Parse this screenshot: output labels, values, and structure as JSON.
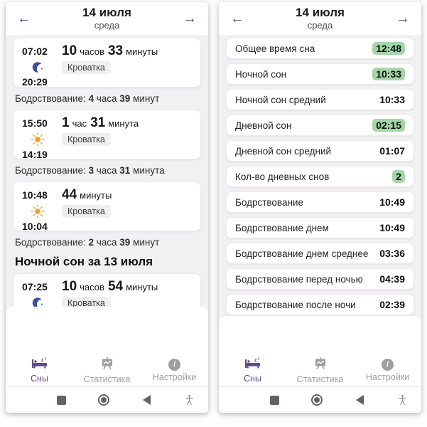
{
  "colors": {
    "accent_purple": "#5f4a8b",
    "night_blue": "#3a4fa0",
    "day_orange": "#f2a41f",
    "badge_green": "#a5d6a7"
  },
  "header": {
    "date": "14 июля",
    "weekday": "среда",
    "prev_glyph": "←",
    "next_glyph": "→"
  },
  "left_panel": {
    "entries": [
      {
        "kind": "sleep",
        "start": "07:02",
        "end": "20:29",
        "icon": "moon",
        "place": "Кроватка",
        "duration": [
          [
            "10",
            "часов"
          ],
          [
            "33",
            "минуты"
          ]
        ]
      },
      {
        "kind": "wake",
        "text": "Бодрствование: 4 часа 39 минут"
      },
      {
        "kind": "sleep",
        "start": "15:50",
        "end": "14:19",
        "icon": "sun",
        "place": "Кроватка",
        "duration": [
          [
            "1",
            "час"
          ],
          [
            "31",
            "минута"
          ]
        ]
      },
      {
        "kind": "wake",
        "text": "Бодрствование: 3 часа 31 минута"
      },
      {
        "kind": "sleep",
        "start": "10:48",
        "end": "10:04",
        "icon": "sun",
        "place": "Кроватка",
        "duration": [
          [
            "44",
            "минуты"
          ]
        ]
      },
      {
        "kind": "wake",
        "text": "Бодрствование: 2 часа 39 минут"
      },
      {
        "kind": "section",
        "text": "Ночной сон за 13 июля"
      },
      {
        "kind": "sleep",
        "start": "07:25",
        "end": null,
        "icon": "moon",
        "place": "Кроватка",
        "duration": [
          [
            "10",
            "часов"
          ],
          [
            "54",
            "минуты"
          ]
        ]
      }
    ]
  },
  "right_panel": {
    "stats": [
      {
        "label": "Общее время сна",
        "value": "12:48",
        "highlight": true
      },
      {
        "label": "Ночной сон",
        "value": "10:33",
        "highlight": true
      },
      {
        "label": "Ночной сон средний",
        "value": "10:33",
        "highlight": false
      },
      {
        "label": "Дневной сон",
        "value": "02:15",
        "highlight": true
      },
      {
        "label": "Дневной сон средний",
        "value": "01:07",
        "highlight": false
      },
      {
        "label": "Кол-во дневных снов",
        "value": "2",
        "highlight": true
      },
      {
        "label": "Бодрствование",
        "value": "10:49",
        "highlight": false
      },
      {
        "label": "Бодрствование днем",
        "value": "10:49",
        "highlight": false
      },
      {
        "label": "Бодрствование днем среднее",
        "value": "03:36",
        "highlight": false
      },
      {
        "label": "Бодрствование перед ночью",
        "value": "04:39",
        "highlight": false
      },
      {
        "label": "Бодрствование после ночи",
        "value": "02:39",
        "highlight": false
      }
    ]
  },
  "nav": {
    "tabs": [
      {
        "id": "sleeps",
        "label": "Сны",
        "icon": "bed-icon",
        "active": true
      },
      {
        "id": "stats",
        "label": "Статистика",
        "icon": "chart-board-icon",
        "active": false
      },
      {
        "id": "settings",
        "label": "Настройки",
        "icon": "info-icon",
        "active": false
      }
    ],
    "android": [
      {
        "id": "recents",
        "icon": "square-icon"
      },
      {
        "id": "home",
        "icon": "circle-icon"
      },
      {
        "id": "back",
        "icon": "triangle-icon"
      },
      {
        "id": "accessibility",
        "icon": "accessibility-person-icon"
      }
    ]
  }
}
